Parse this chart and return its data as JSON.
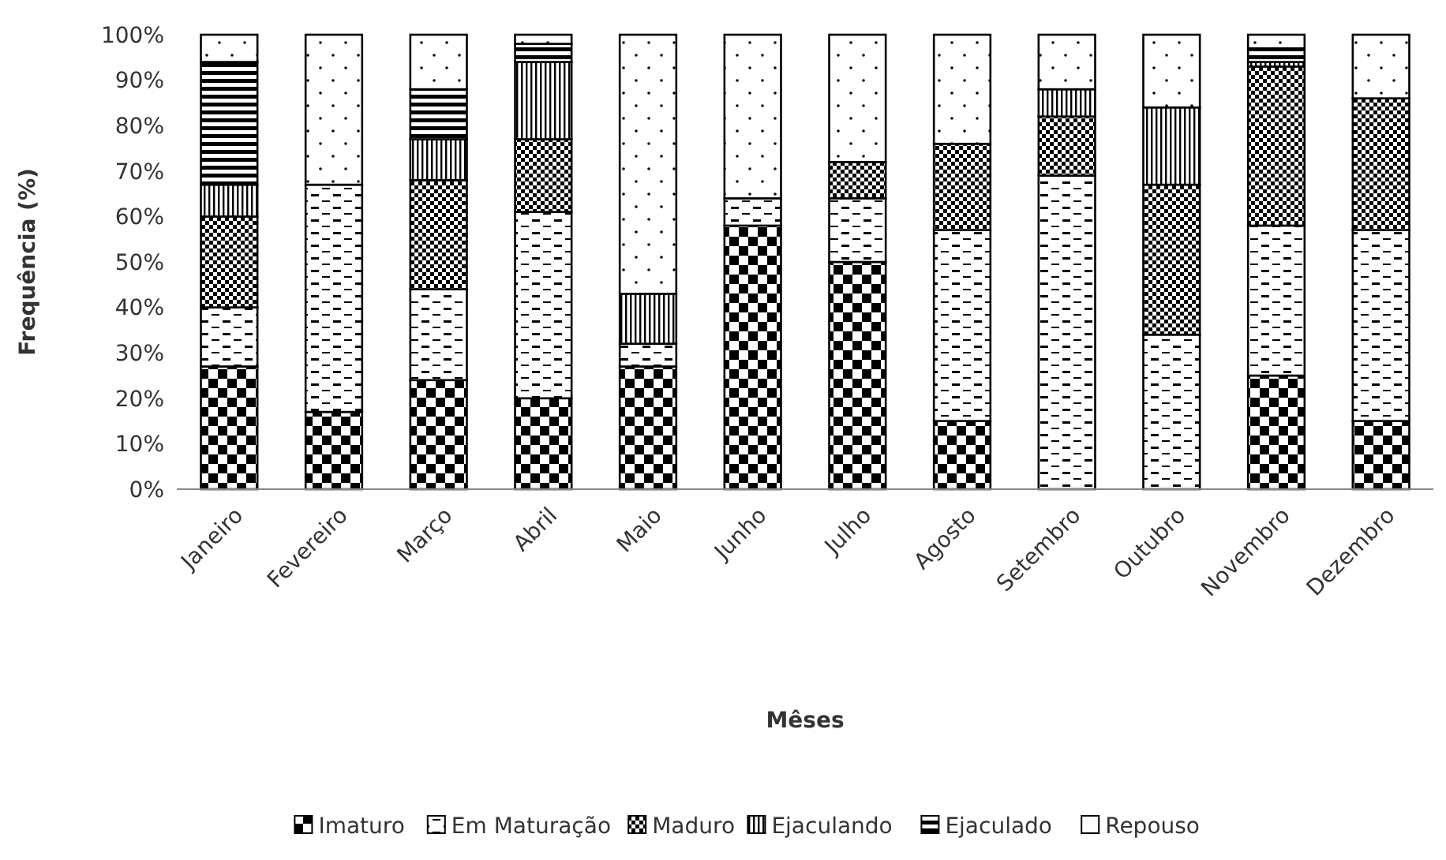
{
  "chart_data": {
    "type": "bar",
    "stacked": true,
    "xlabel": "Mêses",
    "ylabel": "Frequência (%)",
    "categories": [
      "Janeiro",
      "Fevereiro",
      "Março",
      "Abril",
      "Maio",
      "Junho",
      "Julho",
      "Agosto",
      "Setembro",
      "Outubro",
      "Novembro",
      "Dezembro"
    ],
    "series": [
      {
        "name": "Imaturo",
        "color": "#000000",
        "values": [
          27,
          17,
          24,
          20,
          27,
          58,
          50,
          15,
          0,
          0,
          25,
          15
        ]
      },
      {
        "name": "Em Maturação",
        "color": "#000000",
        "values": [
          13,
          50,
          20,
          41,
          5,
          6,
          14,
          42,
          69,
          34,
          33,
          42
        ]
      },
      {
        "name": "Maduro",
        "color": "#000000",
        "values": [
          20,
          0,
          24,
          16,
          0,
          0,
          8,
          19,
          13,
          33,
          35,
          29
        ]
      },
      {
        "name": "Ejaculando",
        "color": "#000000",
        "values": [
          7,
          0,
          9,
          17,
          11,
          0,
          0,
          0,
          6,
          17,
          1,
          0
        ]
      },
      {
        "name": "Ejaculado",
        "color": "#000000",
        "values": [
          27,
          0,
          11,
          4,
          0,
          0,
          0,
          0,
          0,
          0,
          3,
          0
        ]
      },
      {
        "name": "Repouso",
        "color": "#000000",
        "values": [
          6,
          33,
          12,
          2,
          57,
          36,
          28,
          24,
          12,
          16,
          3,
          14
        ]
      }
    ],
    "ylim": [
      0,
      100
    ],
    "yticks": [
      {
        "value": 0,
        "label": "0%"
      },
      {
        "value": 10,
        "label": "10%"
      },
      {
        "value": 20,
        "label": "20%"
      },
      {
        "value": 30,
        "label": "30%"
      },
      {
        "value": 40,
        "label": "40%"
      },
      {
        "value": 50,
        "label": "50%"
      },
      {
        "value": 60,
        "label": "60%"
      },
      {
        "value": 70,
        "label": "70%"
      },
      {
        "value": 80,
        "label": "80%"
      },
      {
        "value": 90,
        "label": "90%"
      },
      {
        "value": 100,
        "label": "100%"
      }
    ],
    "grid": false,
    "legend": "bottom"
  }
}
